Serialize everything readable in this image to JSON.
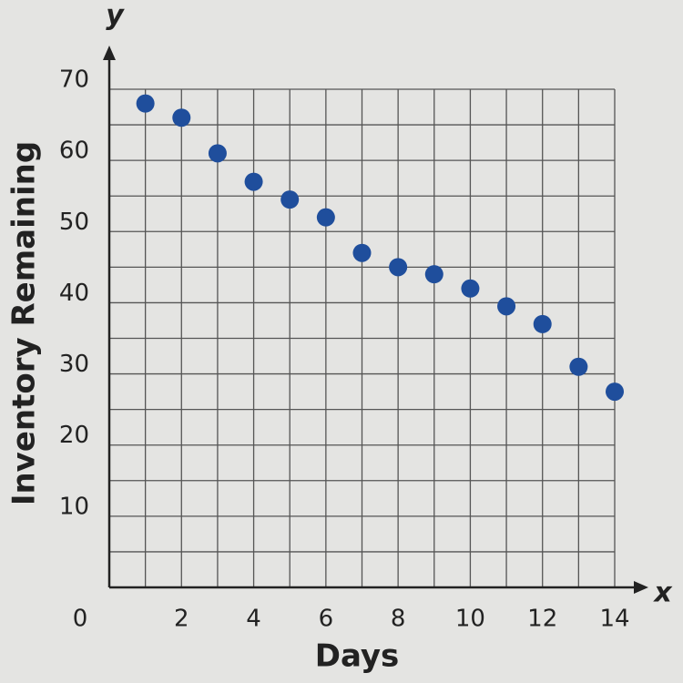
{
  "chart_data": {
    "type": "scatter",
    "x_label": "Days",
    "y_label": "Inventory Remaining",
    "x_axis_letter": "x",
    "y_axis_letter": "y",
    "x": [
      1,
      2,
      3,
      4,
      5,
      6,
      7,
      8,
      9,
      10,
      11,
      12,
      13,
      14
    ],
    "values": [
      68,
      66,
      61,
      57,
      54.5,
      52,
      47,
      45,
      44,
      42,
      39.5,
      37,
      31,
      27.5
    ],
    "color": "#1f4e9c",
    "xlim": [
      0,
      14
    ],
    "xticks": [
      0,
      2,
      4,
      6,
      8,
      10,
      12,
      14
    ],
    "ylim": [
      0,
      70
    ],
    "yticks": [
      10,
      20,
      30,
      40,
      50,
      60,
      70
    ],
    "grid": true
  }
}
